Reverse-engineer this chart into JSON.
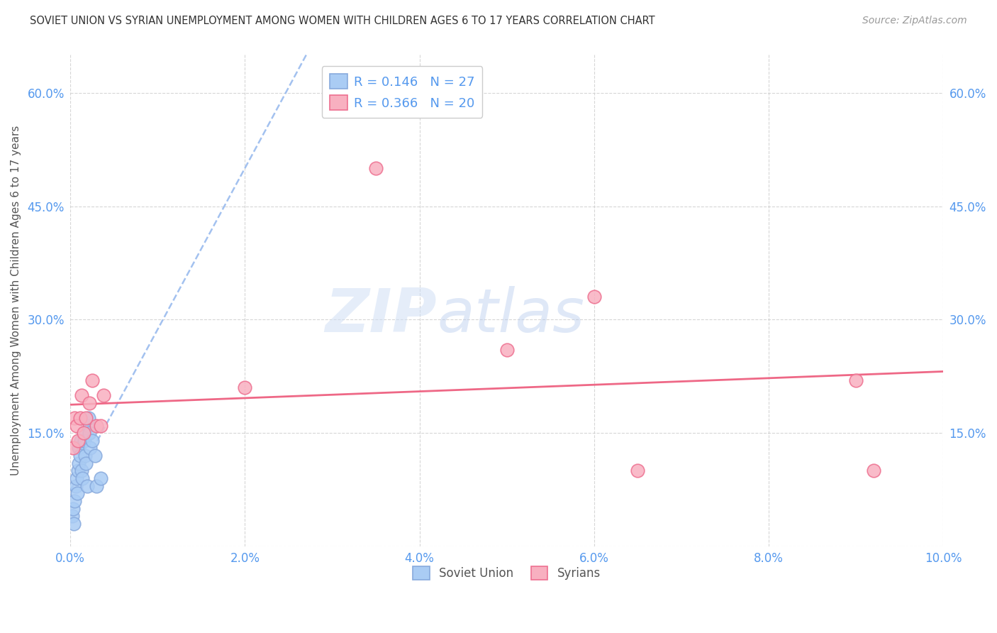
{
  "title": "SOVIET UNION VS SYRIAN UNEMPLOYMENT AMONG WOMEN WITH CHILDREN AGES 6 TO 17 YEARS CORRELATION CHART",
  "source": "Source: ZipAtlas.com",
  "ylabel": "Unemployment Among Women with Children Ages 6 to 17 years",
  "xlim": [
    0.0,
    0.1
  ],
  "ylim": [
    0.0,
    0.65
  ],
  "xticks": [
    0.0,
    0.02,
    0.04,
    0.06,
    0.08,
    0.1
  ],
  "yticks": [
    0.0,
    0.15,
    0.3,
    0.45,
    0.6
  ],
  "xticklabels": [
    "0.0%",
    "2.0%",
    "4.0%",
    "6.0%",
    "8.0%",
    "10.0%"
  ],
  "yticklabels_left": [
    "",
    "15.0%",
    "30.0%",
    "45.0%",
    "60.0%"
  ],
  "yticklabels_right": [
    "",
    "15.0%",
    "30.0%",
    "45.0%",
    "60.0%"
  ],
  "soviet_R": 0.146,
  "soviet_N": 27,
  "syrian_R": 0.366,
  "syrian_N": 20,
  "soviet_color": "#aaccf4",
  "syrian_color": "#f8b0c0",
  "soviet_edge_color": "#88aadd",
  "syrian_edge_color": "#ee7090",
  "soviet_trend_color": "#99bbee",
  "syrian_trend_color": "#ee6080",
  "soviet_x": [
    0.0002,
    0.0003,
    0.0004,
    0.0005,
    0.0006,
    0.0007,
    0.0008,
    0.0009,
    0.001,
    0.001,
    0.0011,
    0.0012,
    0.0013,
    0.0014,
    0.0015,
    0.0016,
    0.0017,
    0.0018,
    0.0019,
    0.002,
    0.0021,
    0.0022,
    0.0023,
    0.0025,
    0.0028,
    0.003,
    0.0035
  ],
  "soviet_y": [
    0.04,
    0.05,
    0.03,
    0.06,
    0.08,
    0.09,
    0.07,
    0.1,
    0.11,
    0.13,
    0.12,
    0.14,
    0.1,
    0.09,
    0.15,
    0.14,
    0.12,
    0.11,
    0.08,
    0.16,
    0.17,
    0.15,
    0.13,
    0.14,
    0.12,
    0.08,
    0.09
  ],
  "syrian_x": [
    0.0003,
    0.0005,
    0.0007,
    0.0009,
    0.0011,
    0.0013,
    0.0015,
    0.0018,
    0.0022,
    0.0025,
    0.003,
    0.0035,
    0.0038,
    0.02,
    0.035,
    0.05,
    0.06,
    0.065,
    0.09,
    0.092
  ],
  "syrian_y": [
    0.13,
    0.17,
    0.16,
    0.14,
    0.17,
    0.2,
    0.15,
    0.17,
    0.19,
    0.22,
    0.16,
    0.16,
    0.2,
    0.21,
    0.5,
    0.26,
    0.33,
    0.1,
    0.22,
    0.1
  ],
  "watermark_zip": "ZIP",
  "watermark_atlas": "atlas",
  "background_color": "#ffffff",
  "grid_color": "#cccccc",
  "tick_color": "#5599ee",
  "legend_text_color": "#5599ee",
  "ylabel_color": "#555555",
  "title_color": "#333333",
  "source_color": "#999999"
}
